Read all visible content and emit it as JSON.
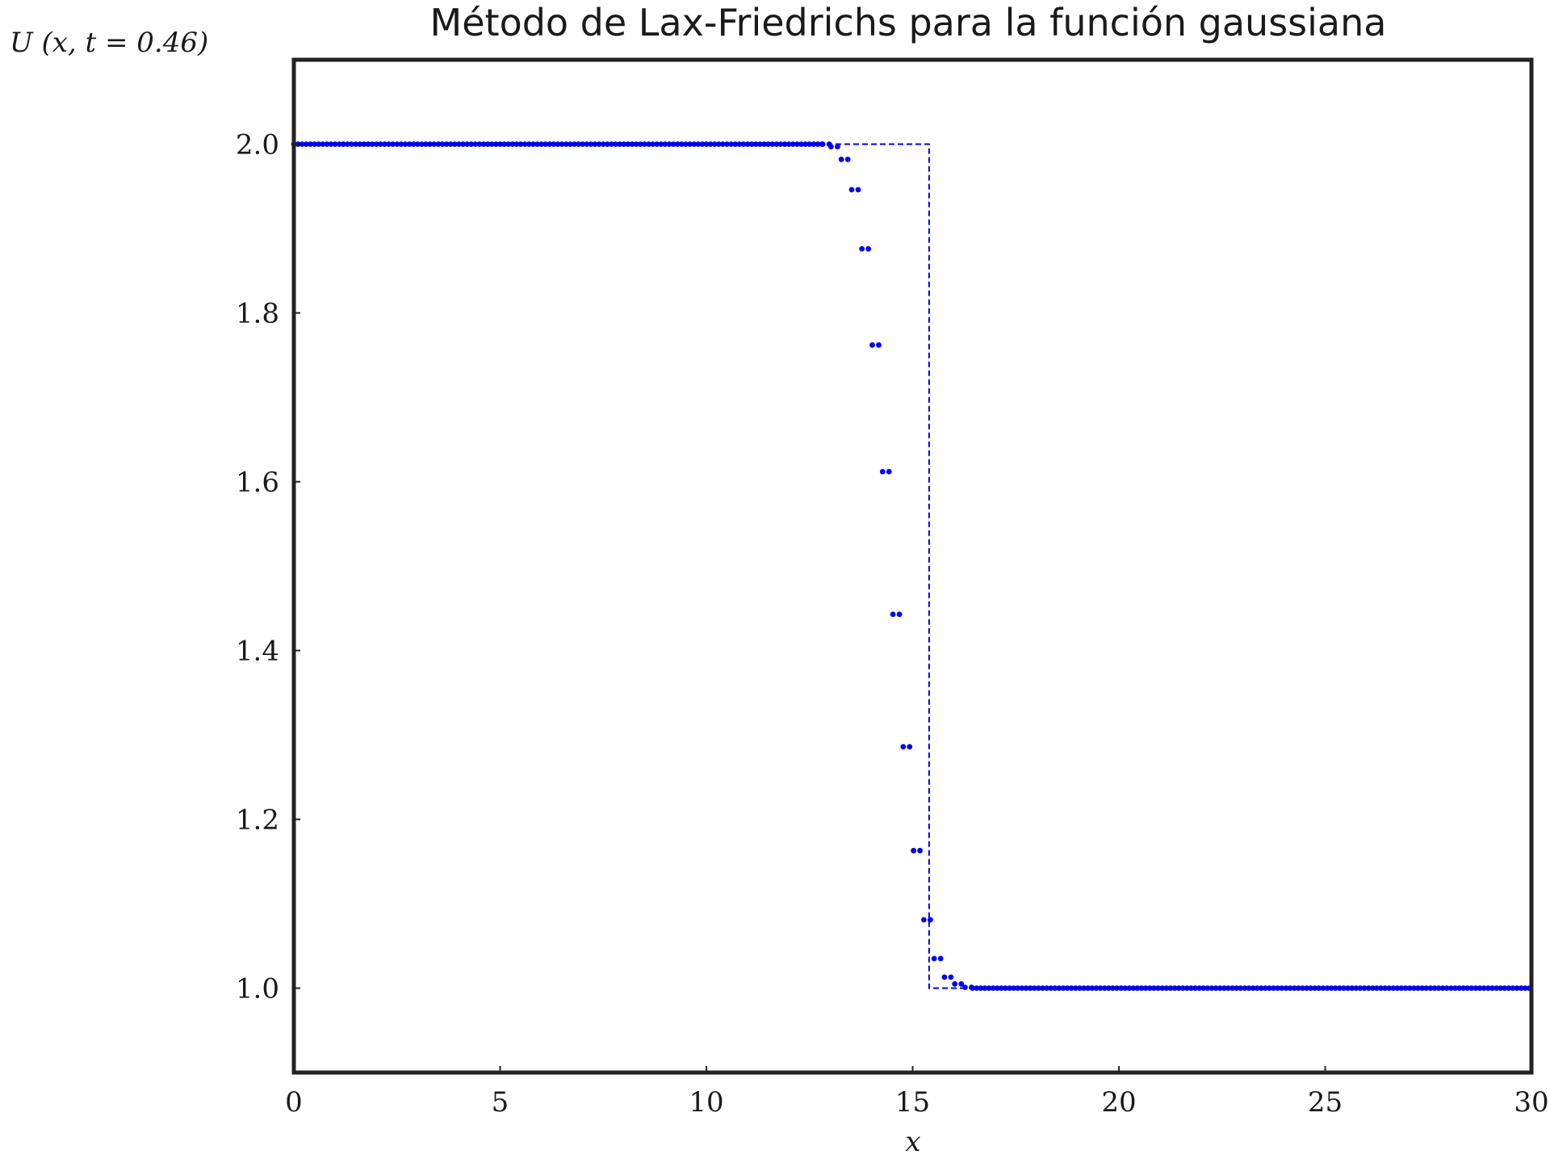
{
  "chart_data": {
    "type": "scatter",
    "title": "Método de Lax-Friedrichs para la función gaussiana",
    "ylabel": "U (x, t = 0.46)",
    "xlabel": "x",
    "xlim": [
      0,
      30
    ],
    "ylim": [
      0.9,
      2.1
    ],
    "xticks": [
      "0",
      "5",
      "10",
      "15",
      "20",
      "25",
      "30"
    ],
    "yticks": [
      "1.0",
      "1.2",
      "1.4",
      "1.6",
      "1.8",
      "2.0"
    ],
    "grid": false,
    "colors": {
      "series": "#0000ee",
      "frame": "#222222"
    },
    "series": [
      {
        "style": "dashed-line",
        "x": [
          0,
          15.4,
          15.4,
          15.5,
          15.5,
          30
        ],
        "y": [
          2.0,
          2.0,
          1.0,
          1.0,
          1.0,
          1.0
        ]
      },
      {
        "style": "points",
        "x": [
          12.9,
          13.1,
          13.35,
          13.6,
          13.85,
          14.1,
          14.35,
          14.6,
          14.85,
          15.1,
          15.35,
          15.6,
          15.85,
          16.1,
          16.35
        ],
        "y": [
          2.0,
          1.997,
          1.982,
          1.946,
          1.876,
          1.762,
          1.612,
          1.443,
          1.286,
          1.163,
          1.081,
          1.035,
          1.013,
          1.005,
          1.001
        ]
      }
    ]
  }
}
